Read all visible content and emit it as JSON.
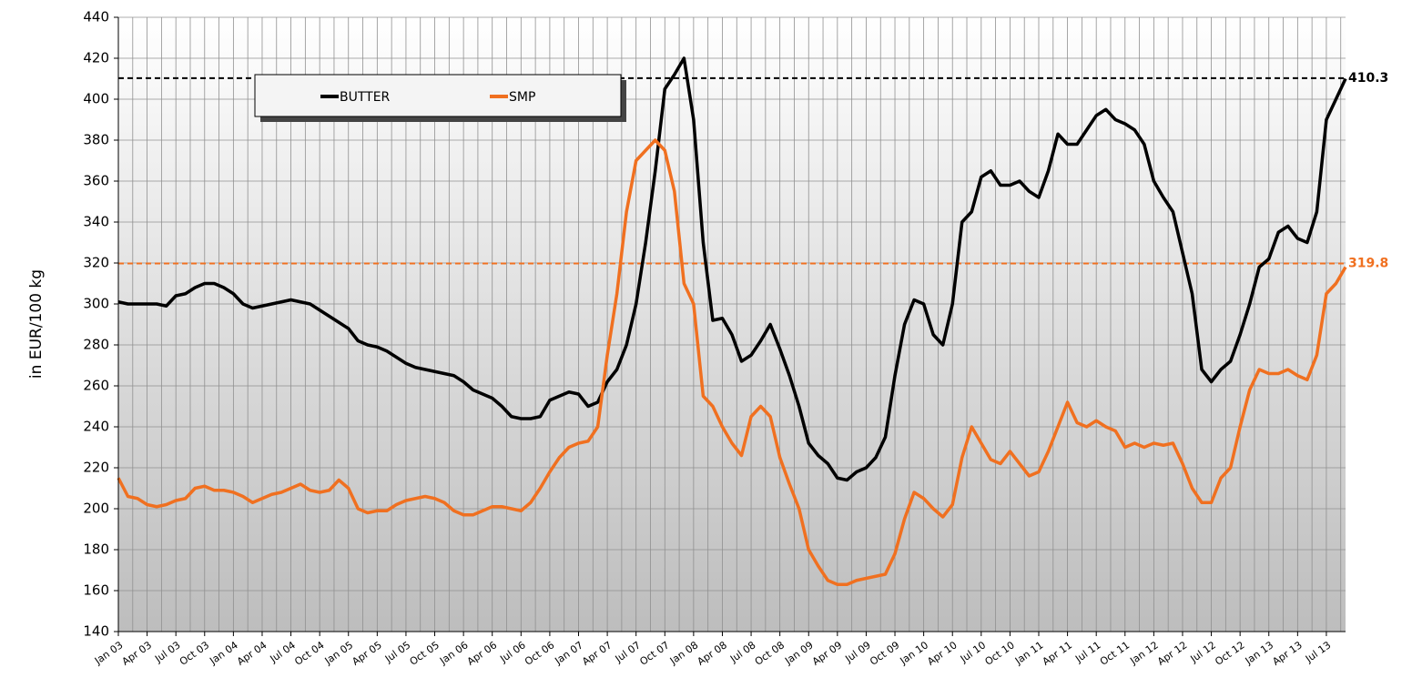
{
  "chart_data": {
    "type": "line",
    "ylabel": "in EUR/100 kg",
    "categories": [
      "Jan 03",
      null,
      null,
      "Apr 03",
      null,
      null,
      "Jul 03",
      null,
      null,
      "Oct 03",
      null,
      null,
      "Jan 04",
      null,
      null,
      "Apr 04",
      null,
      null,
      "Jul 04",
      null,
      null,
      "Oct 04",
      null,
      null,
      "Jan 05",
      null,
      null,
      "Apr 05",
      null,
      null,
      "Jul 05",
      null,
      null,
      "Oct 05",
      null,
      null,
      "Jan 06",
      null,
      null,
      "Apr 06",
      null,
      null,
      "Jul 06",
      null,
      null,
      "Oct 06",
      null,
      null,
      "Jan 07",
      null,
      null,
      "Apr 07",
      null,
      null,
      "Jul 07",
      null,
      null,
      "Oct 07",
      null,
      null,
      "Jan 08",
      null,
      null,
      "Apr 08",
      null,
      null,
      "Jul 08",
      null,
      null,
      "Oct 08",
      null,
      null,
      "Jan 09",
      null,
      null,
      "Apr 09",
      null,
      null,
      "Jul 09",
      null,
      null,
      "Oct 09",
      null,
      null,
      "Jan 10",
      null,
      null,
      "Apr 10",
      null,
      null,
      "Jul 10",
      null,
      null,
      "Oct 10",
      null,
      null,
      "Jan 11",
      null,
      null,
      "Apr 11",
      null,
      null,
      "Jul 11",
      null,
      null,
      "Oct 11",
      null,
      null,
      "Jan 12",
      null,
      null,
      "Apr 12",
      null,
      null,
      "Jul 12",
      null,
      null,
      "Oct 12",
      null,
      null,
      "Jan 13",
      null,
      null,
      "Apr 13",
      null,
      null,
      "Jul 13",
      null,
      null
    ],
    "series": [
      {
        "name": "BUTTER",
        "color": "#000000",
        "values": [
          301,
          300,
          300,
          300,
          300,
          299,
          304,
          305,
          308,
          310,
          310,
          308,
          305,
          300,
          298,
          299,
          300,
          301,
          302,
          301,
          300,
          297,
          294,
          291,
          288,
          282,
          280,
          279,
          277,
          274,
          271,
          269,
          268,
          267,
          266,
          265,
          262,
          258,
          256,
          254,
          250,
          245,
          244,
          244,
          245,
          253,
          255,
          257,
          256,
          250,
          252,
          262,
          268,
          280,
          300,
          330,
          365,
          405,
          412,
          420,
          390,
          330,
          292,
          293,
          285,
          272,
          275,
          282,
          290,
          278,
          265,
          250,
          232,
          226,
          222,
          215,
          214,
          218,
          220,
          225,
          235,
          265,
          290,
          302,
          300,
          285,
          280,
          300,
          340,
          345,
          362,
          365,
          358,
          358,
          360,
          355,
          352,
          365,
          383,
          378,
          378,
          385,
          392,
          395,
          390,
          388,
          385,
          378,
          360,
          352,
          345,
          325,
          305,
          268,
          262,
          268,
          272,
          285,
          300,
          318,
          322,
          335,
          338,
          332,
          330,
          345,
          390,
          400,
          410
        ]
      },
      {
        "name": "SMP",
        "color": "#f07020",
        "values": [
          215,
          206,
          205,
          202,
          201,
          202,
          204,
          205,
          210,
          211,
          209,
          209,
          208,
          206,
          203,
          205,
          207,
          208,
          210,
          212,
          209,
          208,
          209,
          214,
          210,
          200,
          198,
          199,
          199,
          202,
          204,
          205,
          206,
          205,
          203,
          199,
          197,
          197,
          199,
          201,
          201,
          200,
          199,
          203,
          210,
          218,
          225,
          230,
          232,
          233,
          240,
          275,
          305,
          345,
          370,
          375,
          380,
          375,
          355,
          310,
          300,
          255,
          250,
          240,
          232,
          226,
          245,
          250,
          245,
          225,
          212,
          200,
          180,
          172,
          165,
          163,
          163,
          165,
          166,
          167,
          168,
          178,
          195,
          208,
          205,
          200,
          196,
          202,
          225,
          240,
          232,
          224,
          222,
          228,
          222,
          216,
          218,
          228,
          240,
          252,
          242,
          240,
          243,
          240,
          238,
          230,
          232,
          230,
          232,
          231,
          232,
          222,
          210,
          203,
          203,
          215,
          220,
          240,
          258,
          268,
          266,
          266,
          268,
          265,
          263,
          275,
          305,
          310,
          318
        ]
      }
    ],
    "reference_lines": [
      {
        "value": 410.3,
        "color": "#000000"
      },
      {
        "value": 319.8,
        "color": "#f07020"
      }
    ],
    "ylim": [
      140,
      440
    ],
    "yticks": [
      140,
      160,
      180,
      200,
      220,
      240,
      260,
      280,
      300,
      320,
      340,
      360,
      380,
      400,
      420,
      440
    ],
    "grid": true
  }
}
